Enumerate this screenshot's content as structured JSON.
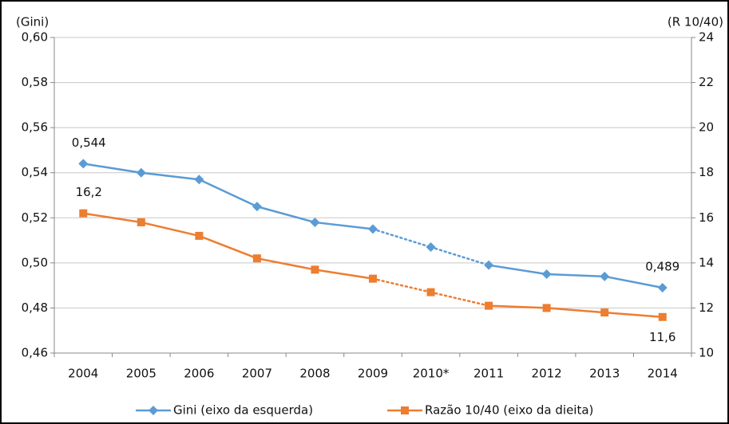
{
  "chart_data": {
    "type": "line",
    "y_axis_label": "(Gini)",
    "y2_axis_label": "(R 10/40)",
    "categories": [
      "2004",
      "2005",
      "2006",
      "2007",
      "2008",
      "2009",
      "2010*",
      "2011",
      "2012",
      "2013",
      "2014"
    ],
    "series": [
      {
        "name": "Gini (eixo da esquerda)",
        "color": "#5b9bd5",
        "marker": "diamond",
        "values": [
          0.544,
          0.54,
          0.537,
          0.525,
          0.518,
          0.515,
          0.507,
          0.499,
          0.495,
          0.494,
          0.489
        ],
        "value_labels": [
          "0,544",
          null,
          null,
          null,
          null,
          null,
          null,
          null,
          null,
          null,
          "0,489"
        ]
      },
      {
        "name": "Razão 10/40 (eixo da dieita)",
        "color": "#ed7d31",
        "marker": "square",
        "axis": "y2",
        "values": [
          16.2,
          15.8,
          15.2,
          14.2,
          13.7,
          13.3,
          12.7,
          12.1,
          12.0,
          11.8,
          11.6
        ],
        "value_labels": [
          "16,2",
          null,
          null,
          null,
          null,
          null,
          null,
          null,
          null,
          null,
          "11,6"
        ]
      }
    ],
    "dotted_segment": [
      5,
      7
    ],
    "ylim": [
      0.46,
      0.6
    ],
    "yticks": [
      {
        "value": 0.46,
        "label": "0,46"
      },
      {
        "value": 0.48,
        "label": "0,48"
      },
      {
        "value": 0.5,
        "label": "0,50"
      },
      {
        "value": 0.52,
        "label": "0,52"
      },
      {
        "value": 0.54,
        "label": "0,54"
      },
      {
        "value": 0.56,
        "label": "0,56"
      },
      {
        "value": 0.58,
        "label": "0,58"
      },
      {
        "value": 0.6,
        "label": "0,60"
      }
    ],
    "y2lim": [
      10,
      24
    ],
    "y2ticks": [
      10,
      12,
      14,
      16,
      18,
      20,
      22,
      24
    ],
    "grid": true,
    "legend": "bottom"
  }
}
